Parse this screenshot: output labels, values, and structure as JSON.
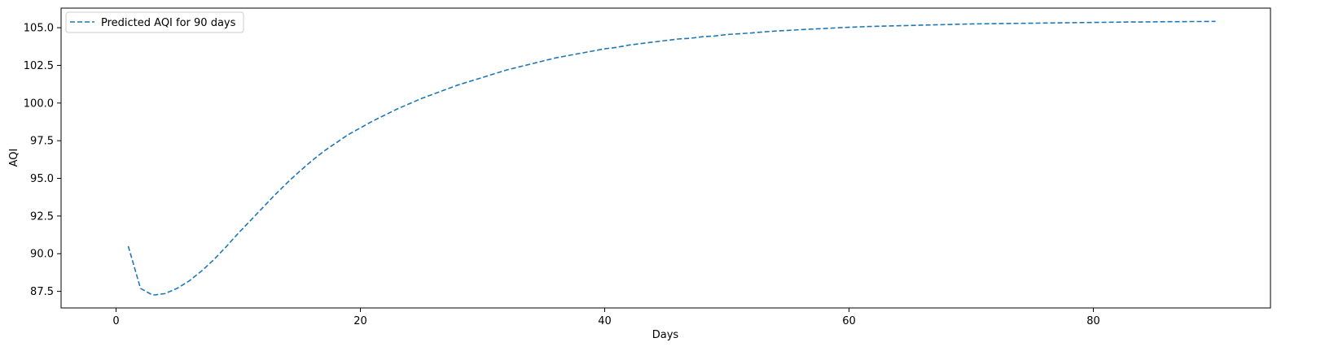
{
  "chart_data": {
    "type": "line",
    "xlabel": "Days",
    "ylabel": "AQI",
    "xlim": [
      -4.5,
      94.5
    ],
    "ylim": [
      86.4,
      106.3
    ],
    "xticks": [
      0,
      20,
      40,
      60,
      80
    ],
    "xtick_labels": [
      "0",
      "20",
      "40",
      "60",
      "80"
    ],
    "yticks": [
      87.5,
      90.0,
      92.5,
      95.0,
      97.5,
      100.0,
      102.5,
      105.0
    ],
    "ytick_labels": [
      "87.5",
      "90.0",
      "92.5",
      "95.0",
      "97.5",
      "100.0",
      "102.5",
      "105.0"
    ],
    "grid": false,
    "legend": {
      "position": "top-left"
    },
    "series": [
      {
        "name": "Predicted AQI for 90 days",
        "color": "#1f77b4",
        "line_style": "dashed",
        "x": [
          1,
          2,
          3,
          4,
          5,
          6,
          7,
          8,
          9,
          10,
          11,
          12,
          13,
          14,
          15,
          16,
          17,
          18,
          19,
          20,
          21,
          22,
          23,
          24,
          25,
          26,
          27,
          28,
          29,
          30,
          31,
          32,
          33,
          34,
          35,
          36,
          37,
          38,
          39,
          40,
          41,
          42,
          43,
          44,
          45,
          46,
          47,
          48,
          49,
          50,
          51,
          52,
          53,
          54,
          55,
          56,
          57,
          58,
          59,
          60,
          61,
          62,
          63,
          64,
          65,
          66,
          67,
          68,
          69,
          70,
          71,
          72,
          73,
          74,
          75,
          76,
          77,
          78,
          79,
          80,
          81,
          82,
          83,
          84,
          85,
          86,
          87,
          88,
          89,
          90
        ],
        "y": [
          90.5,
          87.7,
          87.25,
          87.35,
          87.7,
          88.2,
          88.85,
          89.6,
          90.45,
          91.35,
          92.2,
          93.05,
          93.9,
          94.7,
          95.45,
          96.15,
          96.8,
          97.35,
          97.9,
          98.35,
          98.8,
          99.2,
          99.6,
          99.95,
          100.3,
          100.6,
          100.9,
          101.2,
          101.45,
          101.7,
          101.95,
          102.2,
          102.4,
          102.6,
          102.8,
          103.0,
          103.15,
          103.3,
          103.45,
          103.6,
          103.7,
          103.85,
          103.95,
          104.05,
          104.15,
          104.25,
          104.3,
          104.4,
          104.45,
          104.55,
          104.6,
          104.65,
          104.72,
          104.78,
          104.82,
          104.87,
          104.91,
          104.95,
          104.99,
          105.03,
          105.06,
          105.09,
          105.11,
          105.13,
          105.15,
          105.17,
          105.19,
          105.21,
          105.23,
          105.25,
          105.26,
          105.27,
          105.28,
          105.29,
          105.3,
          105.31,
          105.32,
          105.33,
          105.34,
          105.35,
          105.36,
          105.37,
          105.38,
          105.38,
          105.39,
          105.4,
          105.4,
          105.41,
          105.41,
          105.42
        ]
      }
    ]
  }
}
